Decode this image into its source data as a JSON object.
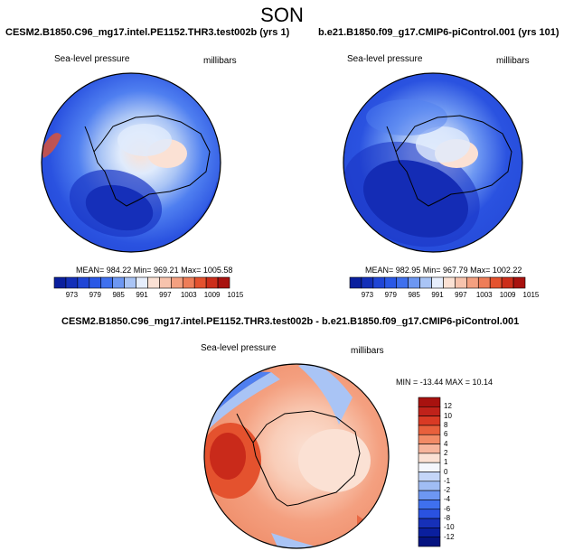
{
  "page": {
    "season": "SON",
    "colors": {
      "deep_blue": "#0a1f9e",
      "blue": "#2a52e0",
      "mid_blue": "#4f7ff0",
      "light_blue": "#a9c4f5",
      "pale_blue": "#e0ebfc",
      "pale_red": "#fbe1d4",
      "light_red": "#f7b59c",
      "red": "#e4522e",
      "dark_red": "#a8120f",
      "coast": "#000000"
    }
  },
  "panels": [
    {
      "title": "CESM2.B1850.C96_mg17.intel.PE1152.THR3.test002b (yrs 1)",
      "variable": "Sea-level pressure",
      "units": "millibars",
      "stats": "MEAN= 984.22  Min= 969.21  Max= 1005.58",
      "colorbar_labels": [
        "973",
        "979",
        "985",
        "991",
        "997",
        "1003",
        "1009",
        "1015"
      ]
    },
    {
      "title": "b.e21.B1850.f09_g17.CMIP6-piControl.001 (yrs 101)",
      "variable": "Sea-level pressure",
      "units": "millibars",
      "stats": "MEAN= 982.95  Min= 967.79  Max= 1002.22",
      "colorbar_labels": [
        "973",
        "979",
        "985",
        "991",
        "997",
        "1003",
        "1009",
        "1015"
      ]
    }
  ],
  "diff_panel": {
    "title": "CESM2.B1850.C96_mg17.intel.PE1152.THR3.test002b - b.e21.B1850.f09_g17.CMIP6-piControl.001",
    "variable": "Sea-level pressure",
    "units": "millibars",
    "stats": "MIN = -13.44 MAX =  10.14",
    "colorbar_labels": [
      "12",
      "10",
      "8",
      "6",
      "4",
      "2",
      "1",
      "0",
      "-1",
      "-2",
      "-4",
      "-6",
      "-8",
      "-10",
      "-12"
    ]
  }
}
